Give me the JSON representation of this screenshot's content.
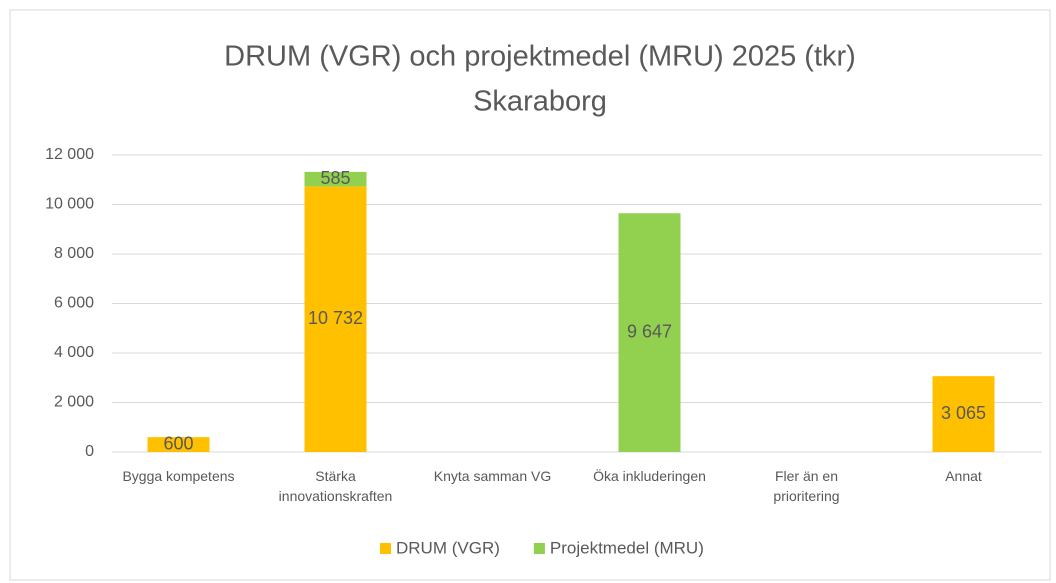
{
  "chart_data": {
    "type": "stacked_bar",
    "title": [
      "DRUM (VGR) och projektmedel (MRU) 2025 (tkr)",
      "Skaraborg"
    ],
    "categories": [
      "Bygga kompetens",
      "Stärka innovationskraften",
      "Knyta samman VG",
      "Öka inkluderingen",
      "Fler än en prioritering",
      "Annat"
    ],
    "series": [
      {
        "name": "DRUM (VGR)",
        "color": "#ffc000",
        "values": [
          600,
          10732,
          null,
          null,
          null,
          3065
        ],
        "value_labels": [
          "600",
          "10 732",
          null,
          null,
          null,
          "3 065"
        ]
      },
      {
        "name": "Projektmedel (MRU)",
        "color": "#92d050",
        "values": [
          null,
          585,
          null,
          9647,
          null,
          null
        ],
        "value_labels": [
          null,
          "585",
          null,
          "9 647",
          null,
          null
        ]
      }
    ],
    "ylim": [
      0,
      12000
    ],
    "yticks": [
      0,
      {
        "value": 2000,
        "label": "2 000"
      },
      {
        "value": 4000,
        "label": "4 000"
      },
      {
        "value": 6000,
        "label": "6 000"
      },
      {
        "value": 8000,
        "label": "8 000"
      },
      {
        "value": 10000,
        "label": "10 000"
      },
      {
        "value": 12000,
        "label": "12 000"
      }
    ],
    "grid": true,
    "legend": "bottom"
  }
}
